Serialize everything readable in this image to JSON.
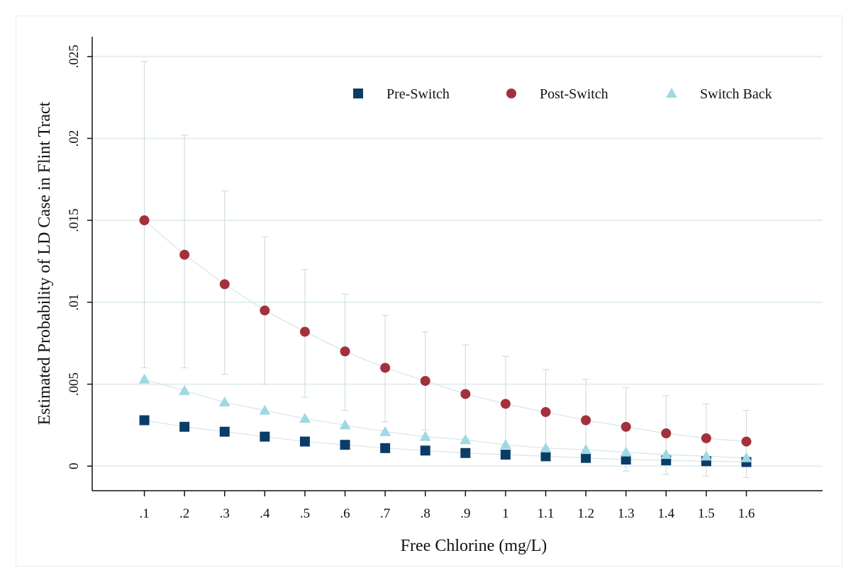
{
  "chart_data": {
    "type": "scatter",
    "xlabel": "Free Chlorine (mg/L)",
    "ylabel": "Estimated Probability of LD Case in Flint Tract",
    "x": [
      0.1,
      0.2,
      0.3,
      0.4,
      0.5,
      0.6,
      0.7,
      0.8,
      0.9,
      1.0,
      1.1,
      1.2,
      1.3,
      1.4,
      1.5,
      1.6
    ],
    "x_tick_labels": [
      ".1",
      ".2",
      ".3",
      ".4",
      ".5",
      ".6",
      ".7",
      ".8",
      ".9",
      "1",
      "1.1",
      "1.2",
      "1.3",
      "1.4",
      "1.5",
      "1.6"
    ],
    "y_ticks": [
      0,
      0.005,
      0.01,
      0.015,
      0.02,
      0.025
    ],
    "y_tick_labels": [
      "0",
      ".005",
      ".01",
      ".015",
      ".02",
      ".025"
    ],
    "xlim": [
      -0.03,
      1.79
    ],
    "ylim": [
      -0.0015,
      0.0262
    ],
    "grid": true,
    "legend_position": "top-right",
    "series": [
      {
        "name": "Pre-Switch",
        "marker": "square",
        "color": "#0b3c68",
        "values": [
          0.0028,
          0.0024,
          0.0021,
          0.0018,
          0.0015,
          0.0013,
          0.0011,
          0.00095,
          0.0008,
          0.0007,
          0.0006,
          0.0005,
          0.0004,
          0.00035,
          0.0003,
          0.00025
        ]
      },
      {
        "name": "Post-Switch",
        "marker": "circle",
        "color": "#a3313c",
        "values": [
          0.015,
          0.0129,
          0.0111,
          0.0095,
          0.0082,
          0.007,
          0.006,
          0.0052,
          0.0044,
          0.0038,
          0.0033,
          0.0028,
          0.0024,
          0.002,
          0.0017,
          0.0015
        ],
        "ci_low": [
          0.006,
          0.006,
          0.0056,
          0.005,
          0.0042,
          0.0034,
          0.0027,
          0.0022,
          0.0017,
          0.0013,
          0.0008,
          0.0004,
          -0.0003,
          -0.0005,
          -0.0006,
          -0.0007
        ],
        "ci_high": [
          0.0247,
          0.0202,
          0.0168,
          0.014,
          0.012,
          0.0105,
          0.0092,
          0.0082,
          0.0074,
          0.0067,
          0.0059,
          0.0053,
          0.0048,
          0.0043,
          0.0038,
          0.0034
        ]
      },
      {
        "name": "Switch Back",
        "marker": "triangle",
        "color": "#9dd9e3",
        "values": [
          0.0053,
          0.0046,
          0.0039,
          0.0034,
          0.0029,
          0.0025,
          0.0021,
          0.0018,
          0.0016,
          0.0013,
          0.0011,
          0.001,
          0.00085,
          0.0007,
          0.0006,
          0.0005
        ]
      }
    ]
  },
  "colors": {
    "gridline": "#e3eef0",
    "axis": "#111111",
    "ci_line": "#d3dde0",
    "fit_line": "#d6e5ea"
  }
}
